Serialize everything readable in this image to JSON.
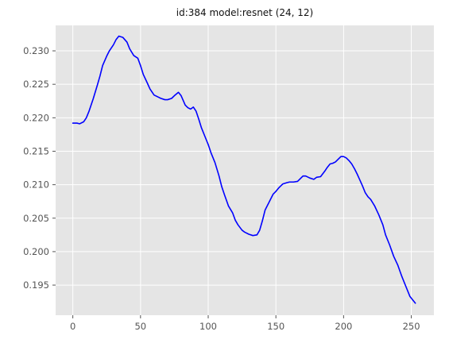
{
  "chart_data": {
    "type": "line",
    "title": "id:384 model:resnet (24, 12)",
    "xlabel": "",
    "ylabel": "",
    "xlim": [
      -12.7,
      266.7
    ],
    "ylim": [
      0.1905,
      0.2338
    ],
    "xticks": [
      0,
      50,
      100,
      150,
      200,
      250
    ],
    "yticks": [
      0.195,
      0.2,
      0.205,
      0.21,
      0.215,
      0.22,
      0.225,
      0.23
    ],
    "ytick_labels": [
      "0.195",
      "0.200",
      "0.205",
      "0.210",
      "0.215",
      "0.220",
      "0.225",
      "0.230"
    ],
    "grid": true,
    "style": "ggplot",
    "background_color": "#e5e5e5",
    "grid_color": "#ffffff",
    "series": [
      {
        "color": "#0000ff",
        "x": [
          0,
          3,
          5,
          8,
          10,
          12,
          15,
          18,
          20,
          22,
          25,
          27,
          30,
          32,
          34,
          37,
          40,
          42,
          45,
          48,
          50,
          52,
          55,
          57,
          60,
          63,
          65,
          68,
          70,
          73,
          75,
          78,
          80,
          83,
          85,
          87,
          89,
          91,
          93,
          95,
          98,
          100,
          102,
          105,
          108,
          110,
          112,
          115,
          118,
          120,
          122,
          125,
          127,
          130,
          133,
          136,
          138,
          140,
          142,
          144,
          146,
          148,
          150,
          152,
          155,
          158,
          160,
          163,
          166,
          168,
          170,
          172,
          175,
          178,
          180,
          183,
          186,
          188,
          190,
          192,
          194,
          196,
          198,
          200,
          202,
          204,
          206,
          208,
          210,
          212,
          214,
          216,
          218,
          220,
          223,
          226,
          229,
          231,
          234,
          237,
          240,
          243,
          246,
          249,
          251,
          253
        ],
        "y": [
          0.2192,
          0.2192,
          0.2191,
          0.2194,
          0.22,
          0.221,
          0.2228,
          0.2248,
          0.2262,
          0.2278,
          0.2292,
          0.23,
          0.2309,
          0.2317,
          0.2322,
          0.232,
          0.2313,
          0.2303,
          0.2293,
          0.2289,
          0.2278,
          0.2265,
          0.2252,
          0.2243,
          0.2234,
          0.2231,
          0.2229,
          0.2227,
          0.2227,
          0.2229,
          0.2233,
          0.2238,
          0.2233,
          0.2219,
          0.2215,
          0.2213,
          0.2216,
          0.221,
          0.2198,
          0.2185,
          0.217,
          0.216,
          0.2148,
          0.2133,
          0.2113,
          0.2097,
          0.2085,
          0.2068,
          0.2058,
          0.2047,
          0.204,
          0.2032,
          0.2029,
          0.2026,
          0.2024,
          0.2025,
          0.2032,
          0.2046,
          0.2062,
          0.207,
          0.2078,
          0.2086,
          0.209,
          0.2095,
          0.2101,
          0.2103,
          0.2104,
          0.2104,
          0.2105,
          0.2109,
          0.2113,
          0.2113,
          0.211,
          0.2108,
          0.2111,
          0.2112,
          0.212,
          0.2126,
          0.2131,
          0.2132,
          0.2134,
          0.2138,
          0.2142,
          0.2142,
          0.214,
          0.2136,
          0.2131,
          0.2124,
          0.2116,
          0.2107,
          0.2098,
          0.2088,
          0.2082,
          0.2078,
          0.2068,
          0.2055,
          0.204,
          0.2025,
          0.201,
          0.1993,
          0.198,
          0.1963,
          0.1948,
          0.1933,
          0.1928,
          0.1923
        ]
      }
    ]
  }
}
